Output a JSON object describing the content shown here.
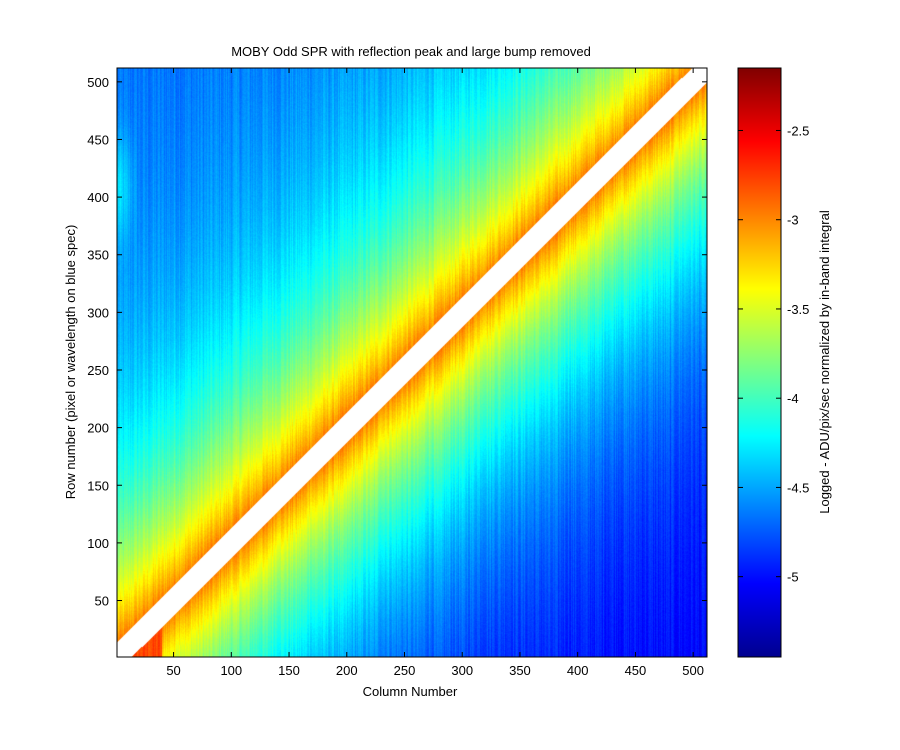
{
  "chart_data": {
    "type": "heatmap",
    "title": "MOBY Odd SPR with reflection peak and large bump removed",
    "xlabel": "Column Number",
    "ylabel": "Row number (pixel or wavelength on blue spec)",
    "xlim": [
      1,
      512
    ],
    "ylim": [
      1,
      512
    ],
    "xticks": [
      50,
      100,
      150,
      200,
      250,
      300,
      350,
      400,
      450,
      500
    ],
    "yticks": [
      50,
      100,
      150,
      200,
      250,
      300,
      350,
      400,
      450,
      500
    ],
    "colorbar": {
      "label": "Logged - ADU/pix/sec normalized by in-band integral",
      "range": [
        -5.45,
        -2.15
      ],
      "ticks": [
        -5,
        -4.5,
        -4,
        -3.5,
        -3,
        -2.5
      ],
      "colormap": "jet"
    },
    "diagonal_gap": "white (NaN) band along row = column",
    "approx_values": {
      "near_diagonal": -3.0,
      "upper_left_corner_top": -4.7,
      "lower_right_corner_bottom": -5.1,
      "bottom_left_corner_near_diag": -2.8
    }
  }
}
